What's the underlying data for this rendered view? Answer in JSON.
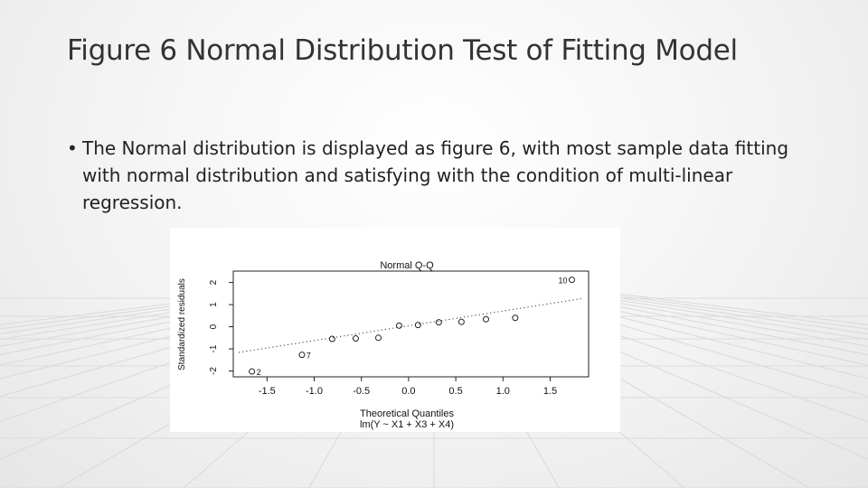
{
  "slide": {
    "title": "Figure 6 Normal Distribution Test of Fitting Model",
    "bullet": "The Normal distribution is displayed as figure 6, with most sample data fitting with normal distribution and satisfying with the condition of multi-linear regression."
  },
  "chart_data": {
    "type": "scatter",
    "title": "Normal Q-Q",
    "xlabel": "Theoretical Quantiles",
    "subtitle": "lm(Y ~ X1 + X3 + X4)",
    "ylabel": "Standardized residuals",
    "xlim": [
      -1.8,
      1.85
    ],
    "ylim": [
      -2.1,
      2.35
    ],
    "x_ticks": [
      -1.5,
      -1.0,
      -0.5,
      0.0,
      0.5,
      1.0,
      1.5
    ],
    "x_tick_labels": [
      "-1.5",
      "-1.0",
      "-0.5",
      "0.0",
      "0.5",
      "1.0",
      "1.5"
    ],
    "y_ticks": [
      -2,
      -1,
      0,
      1,
      2
    ],
    "y_tick_labels": [
      "-2",
      "-1",
      "0",
      "1",
      "2"
    ],
    "grid": false,
    "reference_line": {
      "style": "dotted",
      "x": [
        -1.8,
        1.85
      ],
      "y": [
        -1.16,
        1.28
      ]
    },
    "points": [
      {
        "x": -1.66,
        "y": -2.02,
        "label": "2"
      },
      {
        "x": -1.13,
        "y": -1.27,
        "label": "7"
      },
      {
        "x": -0.81,
        "y": -0.55
      },
      {
        "x": -0.56,
        "y": -0.53
      },
      {
        "x": -0.32,
        "y": -0.5
      },
      {
        "x": -0.1,
        "y": 0.05
      },
      {
        "x": 0.1,
        "y": 0.08
      },
      {
        "x": 0.32,
        "y": 0.2
      },
      {
        "x": 0.56,
        "y": 0.22
      },
      {
        "x": 0.82,
        "y": 0.34
      },
      {
        "x": 1.13,
        "y": 0.4
      },
      {
        "x": 1.73,
        "y": 2.12,
        "label": "10"
      }
    ]
  }
}
